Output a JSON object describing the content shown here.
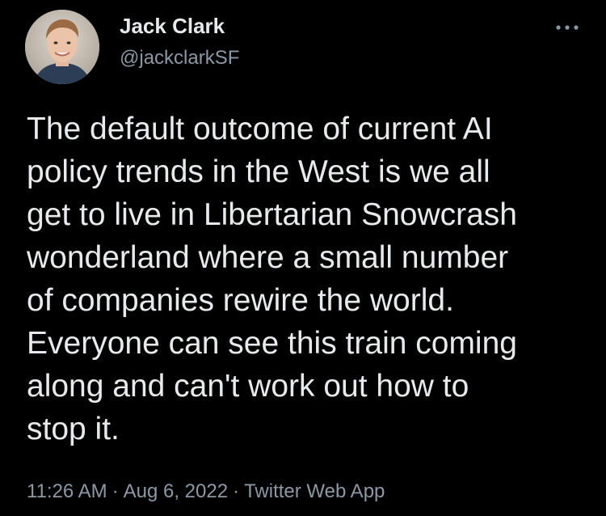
{
  "tweet": {
    "author": {
      "display_name": "Jack Clark",
      "handle": "@jackclarkSF"
    },
    "text": "The default outcome of current AI\npolicy trends in the West is we all\nget to live in Libertarian Snowcrash\nwonderland where a small number\nof companies rewire the world.\nEveryone can see this train coming\nalong and can't work out how to\nstop it.",
    "time": "11:26 AM",
    "date": "Aug 6, 2022",
    "source": "Twitter Web App",
    "separator": "·"
  },
  "icons": {
    "more": "more-horizontal-icon",
    "avatar": "profile-photo"
  },
  "colors": {
    "background": "#000000",
    "primary_text": "#e7e9ea",
    "secondary_text": "#8b98a5"
  }
}
